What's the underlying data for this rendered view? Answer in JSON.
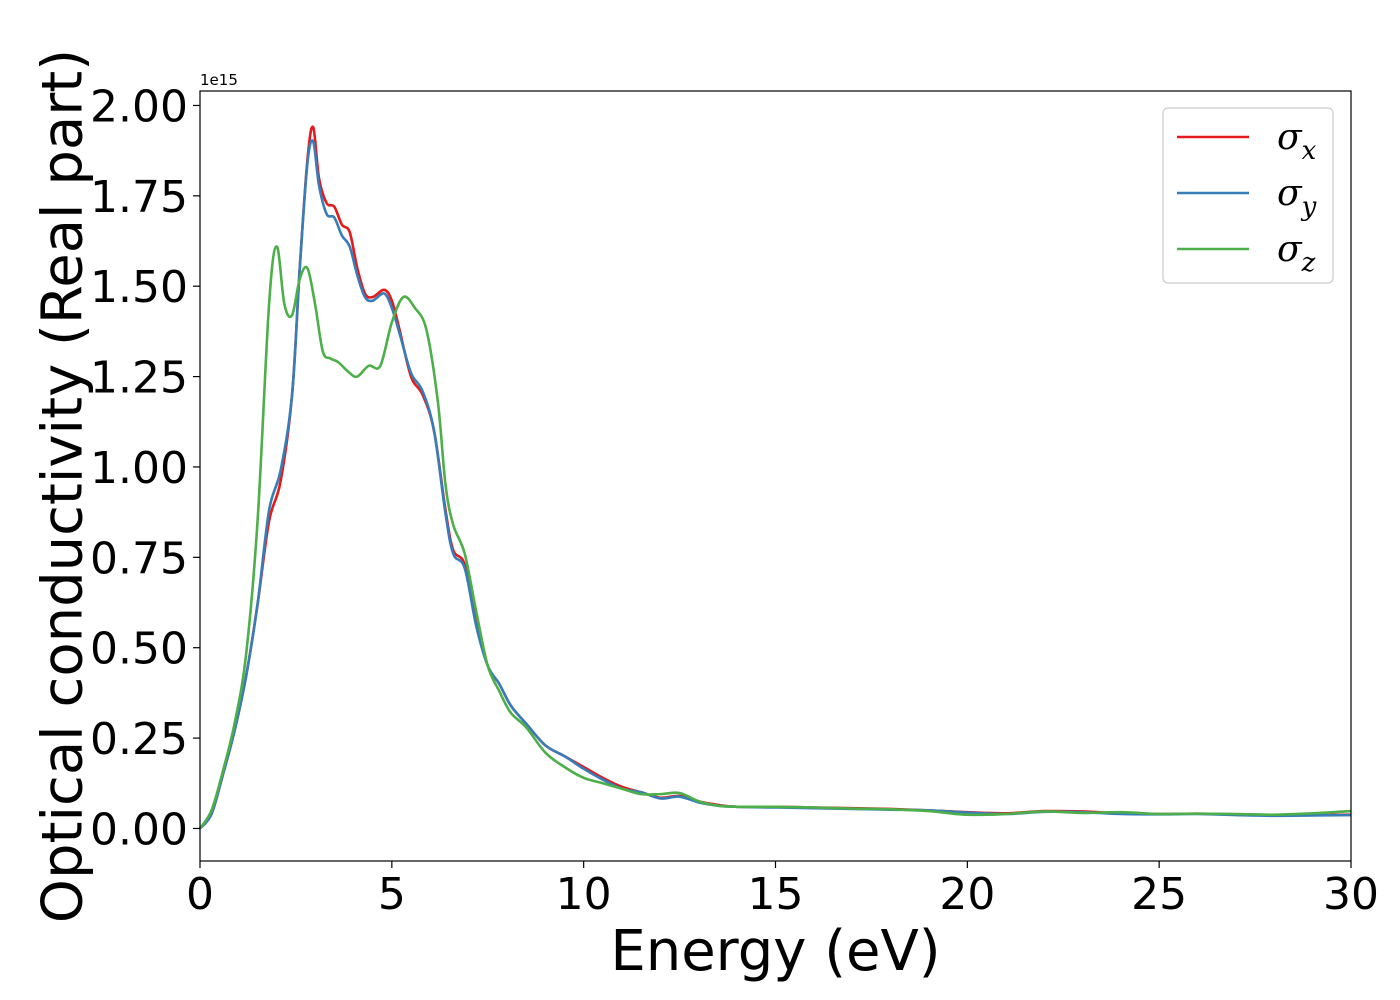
{
  "chart_data": {
    "type": "line",
    "xlabel": "Energy (eV)",
    "ylabel": "Optical conductivity (Real part)",
    "offset_text": "1e15",
    "y_scale_factor": 1000000000000000.0,
    "xlim": [
      0,
      30
    ],
    "ylim": [
      -0.09,
      2.04
    ],
    "x_ticks": [
      0,
      5,
      10,
      15,
      20,
      25,
      30
    ],
    "x_tick_labels": [
      "0",
      "5",
      "10",
      "15",
      "20",
      "25",
      "30"
    ],
    "y_ticks": [
      0,
      0.25,
      0.5,
      0.75,
      1.0,
      1.25,
      1.5,
      1.75,
      2.0
    ],
    "y_tick_labels": [
      "0.00",
      "0.25",
      "0.50",
      "0.75",
      "1.00",
      "1.25",
      "1.50",
      "1.75",
      "2.00"
    ],
    "grid": false,
    "legend_position": "top-right",
    "series": [
      {
        "name": "σx",
        "symbol": "σ",
        "subscript": "x",
        "color": "#e41a1c",
        "x": [
          0,
          0.3,
          0.6,
          0.9,
          1.2,
          1.5,
          1.8,
          2.1,
          2.4,
          2.6,
          2.8,
          2.95,
          3.1,
          3.3,
          3.5,
          3.7,
          3.9,
          4.1,
          4.3,
          4.5,
          4.8,
          5.0,
          5.2,
          5.5,
          5.8,
          6.1,
          6.4,
          6.6,
          6.9,
          7.2,
          7.5,
          7.8,
          8.1,
          8.5,
          9.0,
          9.5,
          10.0,
          10.5,
          11.0,
          11.5,
          12.0,
          12.5,
          13.0,
          13.5,
          14.0,
          15.0,
          16.0,
          17.0,
          18.0,
          19.0,
          20.0,
          21.0,
          22.0,
          23.0,
          24.0,
          25.0,
          26.0,
          27.0,
          28.0,
          29.0,
          30.0
        ],
        "values": [
          0,
          0.04,
          0.15,
          0.27,
          0.42,
          0.62,
          0.85,
          0.96,
          1.2,
          1.55,
          1.85,
          1.94,
          1.8,
          1.73,
          1.72,
          1.67,
          1.65,
          1.55,
          1.48,
          1.47,
          1.49,
          1.46,
          1.38,
          1.25,
          1.2,
          1.1,
          0.88,
          0.77,
          0.73,
          0.57,
          0.45,
          0.4,
          0.34,
          0.29,
          0.23,
          0.2,
          0.17,
          0.14,
          0.115,
          0.1,
          0.085,
          0.09,
          0.075,
          0.065,
          0.06,
          0.06,
          0.058,
          0.056,
          0.054,
          0.05,
          0.045,
          0.042,
          0.048,
          0.047,
          0.042,
          0.04,
          0.041,
          0.039,
          0.036,
          0.037,
          0.038
        ]
      },
      {
        "name": "σy",
        "symbol": "σ",
        "subscript": "y",
        "color": "#377eb8",
        "x": [
          0,
          0.3,
          0.6,
          0.9,
          1.2,
          1.5,
          1.8,
          2.1,
          2.4,
          2.6,
          2.8,
          2.95,
          3.1,
          3.3,
          3.5,
          3.7,
          3.9,
          4.1,
          4.3,
          4.5,
          4.8,
          5.0,
          5.2,
          5.5,
          5.8,
          6.1,
          6.4,
          6.6,
          6.9,
          7.2,
          7.5,
          7.8,
          8.1,
          8.5,
          9.0,
          9.5,
          10.0,
          10.5,
          11.0,
          11.5,
          12.0,
          12.5,
          13.0,
          13.5,
          14.0,
          15.0,
          16.0,
          17.0,
          18.0,
          19.0,
          20.0,
          21.0,
          22.0,
          23.0,
          24.0,
          25.0,
          26.0,
          27.0,
          28.0,
          29.0,
          30.0
        ],
        "values": [
          0,
          0.04,
          0.15,
          0.27,
          0.42,
          0.62,
          0.88,
          0.99,
          1.2,
          1.55,
          1.84,
          1.9,
          1.78,
          1.7,
          1.69,
          1.64,
          1.61,
          1.53,
          1.47,
          1.46,
          1.48,
          1.44,
          1.37,
          1.26,
          1.21,
          1.1,
          0.87,
          0.76,
          0.72,
          0.56,
          0.45,
          0.4,
          0.34,
          0.29,
          0.23,
          0.2,
          0.165,
          0.135,
          0.11,
          0.1,
          0.083,
          0.088,
          0.072,
          0.063,
          0.06,
          0.058,
          0.056,
          0.054,
          0.052,
          0.05,
          0.044,
          0.04,
          0.046,
          0.045,
          0.04,
          0.039,
          0.04,
          0.037,
          0.035,
          0.036,
          0.037
        ]
      },
      {
        "name": "σz",
        "symbol": "σ",
        "subscript": "z",
        "color": "#4daf4a",
        "x": [
          0,
          0.3,
          0.6,
          0.9,
          1.2,
          1.5,
          1.8,
          2.0,
          2.2,
          2.4,
          2.6,
          2.8,
          3.0,
          3.2,
          3.4,
          3.6,
          3.9,
          4.1,
          4.4,
          4.7,
          5.0,
          5.3,
          5.6,
          5.9,
          6.2,
          6.4,
          6.6,
          6.9,
          7.2,
          7.5,
          7.8,
          8.1,
          8.5,
          9.0,
          9.5,
          10.0,
          10.5,
          11.0,
          11.5,
          12.0,
          12.5,
          13.0,
          13.5,
          14.0,
          15.0,
          16.0,
          17.0,
          18.0,
          19.0,
          20.0,
          21.0,
          22.0,
          23.0,
          24.0,
          25.0,
          26.0,
          27.0,
          28.0,
          29.0,
          30.0
        ],
        "values": [
          0,
          0.05,
          0.16,
          0.29,
          0.48,
          0.85,
          1.45,
          1.61,
          1.45,
          1.42,
          1.52,
          1.55,
          1.45,
          1.32,
          1.3,
          1.29,
          1.26,
          1.25,
          1.28,
          1.28,
          1.4,
          1.47,
          1.44,
          1.38,
          1.18,
          0.95,
          0.84,
          0.76,
          0.6,
          0.45,
          0.38,
          0.32,
          0.28,
          0.21,
          0.17,
          0.14,
          0.125,
          0.11,
          0.095,
          0.095,
          0.098,
          0.075,
          0.063,
          0.06,
          0.06,
          0.058,
          0.055,
          0.053,
          0.048,
          0.038,
          0.04,
          0.047,
          0.043,
          0.045,
          0.04,
          0.041,
          0.04,
          0.038,
          0.042,
          0.048
        ]
      }
    ]
  }
}
